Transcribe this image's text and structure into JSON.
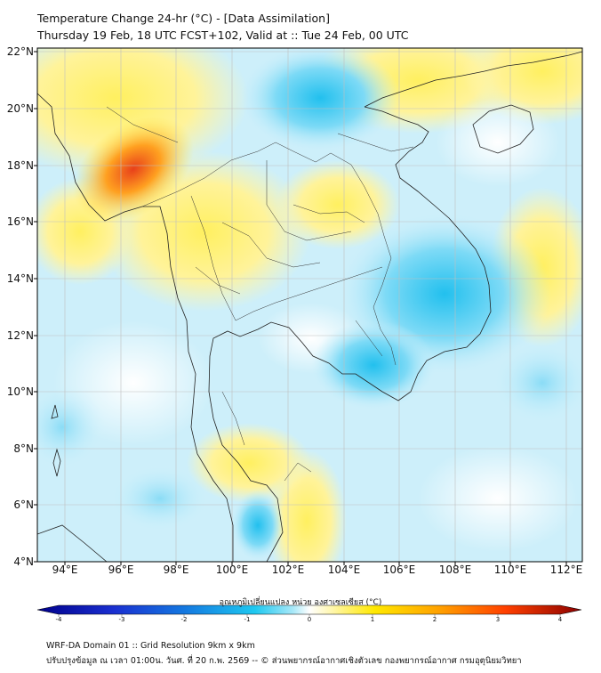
{
  "title_line1": "Temperature Change 24-hr (°C) - [Data Assimilation]",
  "title_line2": "Thursday 19 Feb, 18 UTC FCST+102, Valid at :: Tue 24 Feb, 00 UTC",
  "lat_labels": [
    "22°N",
    "20°N",
    "18°N",
    "16°N",
    "14°N",
    "12°N",
    "10°N",
    "8°N",
    "6°N",
    "4°N"
  ],
  "lon_labels": [
    "94°E",
    "96°E",
    "98°E",
    "100°E",
    "102°E",
    "104°E",
    "106°E",
    "108°E",
    "110°E",
    "112°E"
  ],
  "colorbar": {
    "title": "อุณหภูมิเปลี่ยนแปลง หน่วย องศาเซลเซียส (°C)",
    "ticks": [
      "-4",
      "-3",
      "-2",
      "-1",
      "0",
      "1",
      "2",
      "3",
      "4"
    ],
    "min": -4,
    "max": 4
  },
  "footer_line1": "WRF-DA Domain 01 :: Grid Resolution 9km x 9km",
  "footer_line2": "ปรับปรุงข้อมูล ณ เวลา 01:00น. วันศ. ที่ 20 ก.พ. 2569 -- © ส่วนพยากรณ์อากาศเชิงตัวเลข กองพยากรณ์อากาศ กรมอุตุนิยมวิทยา",
  "colors": {
    "cold_deep": "#00008b",
    "cold": "#1ec8f0",
    "neutral": "#ffffff",
    "warm": "#ffe800",
    "hot": "#ff6a00",
    "hot_deep": "#8b0000"
  }
}
